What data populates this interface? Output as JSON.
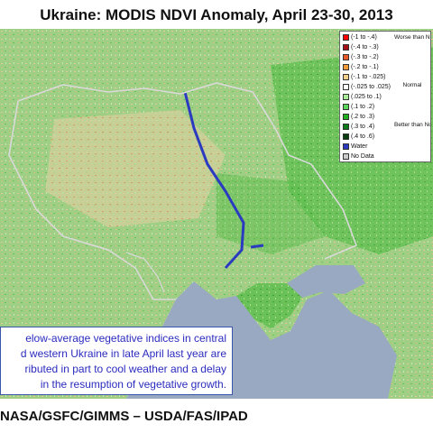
{
  "title": "Ukraine:  MODIS NDVI Anomaly, April 23-30, 2013",
  "legend": {
    "items": [
      {
        "label": "(-1 to -.4)",
        "color": "#ff0000"
      },
      {
        "label": "(-.4 to -.3)",
        "color": "#a50f15"
      },
      {
        "label": "(-.3 to -.2)",
        "color": "#e85a28"
      },
      {
        "label": "(-.2 to -.1)",
        "color": "#f59c3a"
      },
      {
        "label": "(-.1 to -.025)",
        "color": "#f5d08a"
      },
      {
        "label": "(-.025 to .025)",
        "color": "#ffffff"
      },
      {
        "label": "(.025 to .1)",
        "color": "#a8ec9a"
      },
      {
        "label": "(.1 to .2)",
        "color": "#5bd65b"
      },
      {
        "label": "(.2 to .3)",
        "color": "#20b020"
      },
      {
        "label": "(.3 to .4)",
        "color": "#0f7a1a"
      },
      {
        "label": "(.4 to .6)",
        "color": "#0a3d10"
      },
      {
        "label": "Water",
        "color": "#2b3bbf"
      },
      {
        "label": "No Data",
        "color": "#cccccc"
      }
    ],
    "groups": {
      "worse": "Worse than Normal",
      "normal": "Normal",
      "better": "Better than Normal"
    }
  },
  "caption": {
    "lines": [
      "elow-average  vegetative indices in central",
      "d western Ukraine in late April last year are",
      "ributed in part to cool weather and a delay",
      "in the resumption of vegetative growth."
    ]
  },
  "credit": "NASA/GSFC/GIMMS – USDA/FAS/IPAD",
  "colors": {
    "land": "#9fcf84",
    "sea": "#9aa9c2",
    "border": "#d9d9d9"
  }
}
